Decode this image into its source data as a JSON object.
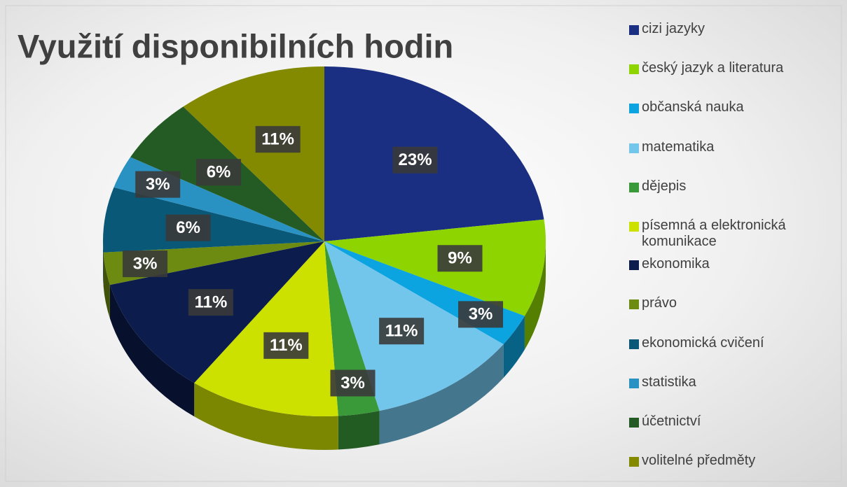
{
  "chart_data": {
    "type": "pie",
    "title": "Využití disponibilních hodin",
    "categories": [
      "cizi jazyky",
      "český jazyk a literatura",
      "občanská nauka",
      "matematika",
      "dějepis",
      "písemná a elektronická komunikace",
      "ekonomika",
      "právo",
      "ekonomická cvičení",
      "statistika",
      "účetnictví",
      "volitelné předměty"
    ],
    "values": [
      23,
      9,
      3,
      11,
      3,
      11,
      11,
      3,
      6,
      3,
      6,
      11
    ],
    "value_labels": [
      "23%",
      "9%",
      "3%",
      "11%",
      "3%",
      "11%",
      "11%",
      "3%",
      "6%",
      "3%",
      "6%",
      "11%"
    ],
    "colors": [
      "#1b2f82",
      "#8dd400",
      "#0ba3e0",
      "#72c6ec",
      "#3a9a3a",
      "#cde100",
      "#0c1d4d",
      "#6c8b10",
      "#0a5878",
      "#2a92c2",
      "#245a24",
      "#838a00"
    ],
    "legend": "right"
  }
}
